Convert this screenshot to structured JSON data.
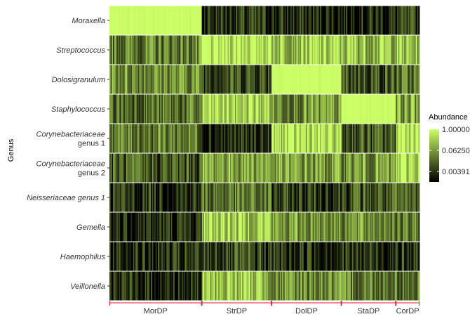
{
  "chart_data": {
    "type": "heatmap",
    "ylabel": "Genus",
    "rows": [
      {
        "label": [
          "Moraxella"
        ],
        "italic": [
          true
        ]
      },
      {
        "label": [
          "Streptococcus"
        ],
        "italic": [
          true
        ]
      },
      {
        "label": [
          "Dolosigranulum"
        ],
        "italic": [
          true
        ]
      },
      {
        "label": [
          "Staphylococcus"
        ],
        "italic": [
          true
        ]
      },
      {
        "label": [
          "Corynebacteriaceae",
          "genus 1"
        ],
        "italic": [
          true,
          false
        ]
      },
      {
        "label": [
          "Corynebacteriaceae",
          "genus 2"
        ],
        "italic": [
          true,
          false
        ]
      },
      {
        "label": [
          "Neisseriaceae genus 1"
        ],
        "italic": [
          true
        ]
      },
      {
        "label": [
          "Gemella"
        ],
        "italic": [
          true
        ]
      },
      {
        "label": [
          "Haemophilus"
        ],
        "italic": [
          true
        ]
      },
      {
        "label": [
          "Veillonella"
        ],
        "italic": [
          true
        ]
      }
    ],
    "groups": [
      {
        "name": "MorDP",
        "share": 0.3
      },
      {
        "name": "StrDP",
        "share": 0.225
      },
      {
        "name": "DolDP",
        "share": 0.225
      },
      {
        "name": "StaDP",
        "share": 0.175
      },
      {
        "name": "CorDP",
        "share": 0.075
      }
    ],
    "mean_abundance": [
      [
        1.0,
        0.004,
        0.003,
        0.003,
        0.004
      ],
      [
        0.03,
        0.7,
        0.25,
        0.2,
        0.15
      ],
      [
        0.05,
        0.01,
        1.0,
        0.01,
        0.02
      ],
      [
        0.02,
        0.3,
        0.05,
        1.0,
        0.08
      ],
      [
        0.03,
        0.003,
        0.4,
        0.01,
        0.8
      ],
      [
        0.01,
        0.1,
        0.06,
        0.06,
        0.4
      ],
      [
        0.004,
        0.02,
        0.005,
        0.01,
        0.01
      ],
      [
        0.003,
        0.3,
        0.06,
        0.05,
        0.02
      ],
      [
        0.003,
        0.006,
        0.004,
        0.004,
        0.003
      ],
      [
        0.003,
        0.2,
        0.04,
        0.03,
        0.02
      ]
    ],
    "legend": {
      "title": "Abundance",
      "ticks": [
        {
          "label": "1.00000",
          "value": 1.0
        },
        {
          "label": "0.06250",
          "value": 0.0625
        },
        {
          "label": "0.00391",
          "value": 0.00391
        }
      ],
      "scale": "log2",
      "low_color": "#000000",
      "high_color": "#ccff66"
    }
  }
}
